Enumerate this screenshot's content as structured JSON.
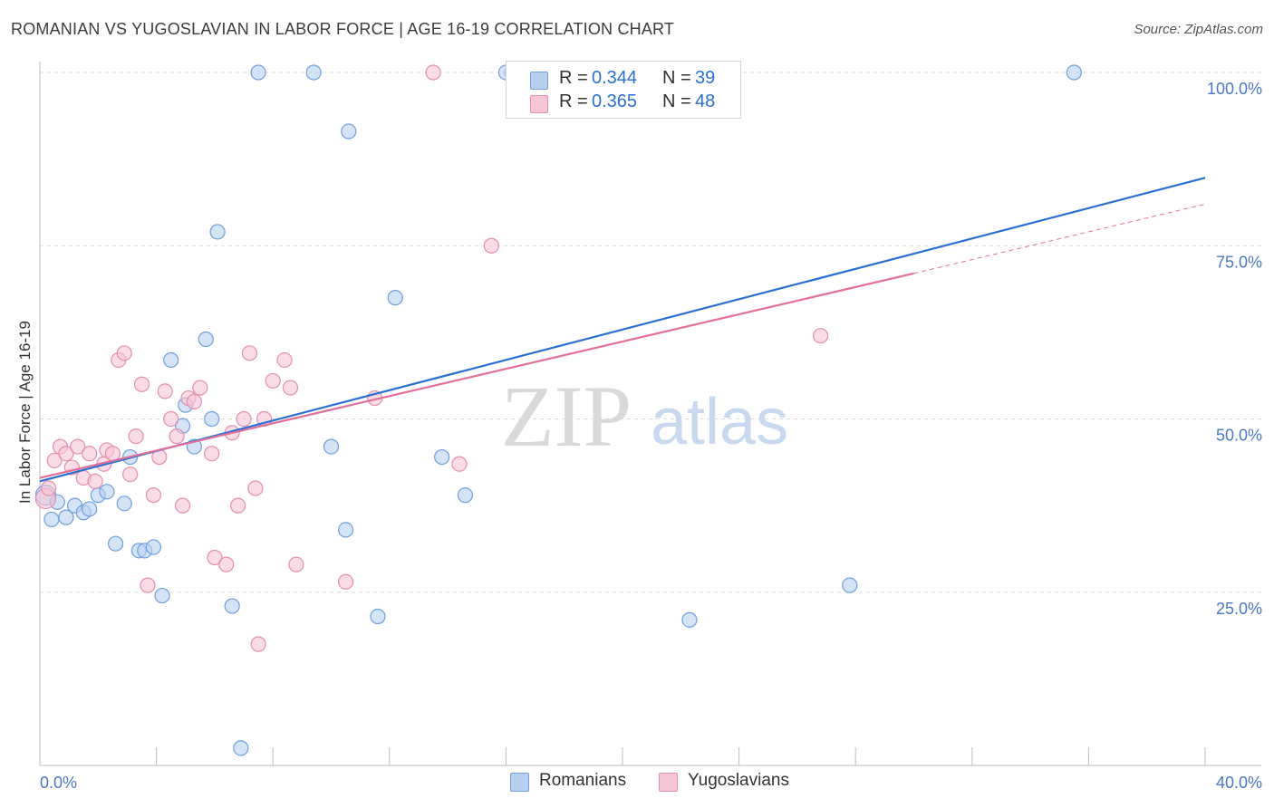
{
  "title": "ROMANIAN VS YUGOSLAVIAN IN LABOR FORCE | AGE 16-19 CORRELATION CHART",
  "source": "Source: ZipAtlas.com",
  "colors": {
    "blue": "#2a6fd1",
    "blue_fill": "#b8d0f0",
    "pink": "#e0709a",
    "pink_fill": "#f6c5d5",
    "axis_label": "#4a78c7",
    "grid": "#dcdcdc"
  },
  "watermark": {
    "zip": "ZIP",
    "atlas": "atlas"
  },
  "legend_top": {
    "rows": [
      {
        "r_label": "R = ",
        "r_value": "0.344",
        "n_label": "N = ",
        "n_value": "39"
      },
      {
        "r_label": "R = ",
        "r_value": "0.365",
        "n_label": "N = ",
        "n_value": "48"
      }
    ]
  },
  "legend_bottom": {
    "items": [
      "Romanians",
      "Yugoslavians"
    ]
  },
  "chart_data": {
    "type": "scatter",
    "title": "ROMANIAN VS YUGOSLAVIAN IN LABOR FORCE | AGE 16-19 CORRELATION CHART",
    "xlabel": "",
    "ylabel": "In Labor Force | Age 16-19",
    "xlim": [
      0,
      40
    ],
    "ylim": [
      0,
      100
    ],
    "x_tick_labels": [
      "0.0%",
      "40.0%"
    ],
    "y_ticks": [
      25,
      50,
      75,
      100
    ],
    "y_tick_labels": [
      "25.0%",
      "50.0%",
      "75.0%",
      "100.0%"
    ],
    "series": [
      {
        "name": "Romanians",
        "R": 0.344,
        "N": 39,
        "trend": {
          "x0": 0,
          "y0": 41.0,
          "x1": 40,
          "y1": 84.8
        },
        "points": [
          [
            0.2,
            39.0
          ],
          [
            0.4,
            35.5
          ],
          [
            0.6,
            38.0
          ],
          [
            0.9,
            35.8
          ],
          [
            1.2,
            37.5
          ],
          [
            1.5,
            36.5
          ],
          [
            1.7,
            37.0
          ],
          [
            2.0,
            39.0
          ],
          [
            2.3,
            39.5
          ],
          [
            2.6,
            32.0
          ],
          [
            2.9,
            37.8
          ],
          [
            3.1,
            44.5
          ],
          [
            3.4,
            31.0
          ],
          [
            3.6,
            31.0
          ],
          [
            3.9,
            31.5
          ],
          [
            4.2,
            24.5
          ],
          [
            4.5,
            58.5
          ],
          [
            4.9,
            49.0
          ],
          [
            5.0,
            52.0
          ],
          [
            5.3,
            46.0
          ],
          [
            5.7,
            61.5
          ],
          [
            5.9,
            50.0
          ],
          [
            6.1,
            77.0
          ],
          [
            6.6,
            23.0
          ],
          [
            6.9,
            2.5
          ],
          [
            7.5,
            100.0
          ],
          [
            9.4,
            100.0
          ],
          [
            10.0,
            46.0
          ],
          [
            10.5,
            34.0
          ],
          [
            10.6,
            91.5
          ],
          [
            11.6,
            21.5
          ],
          [
            12.2,
            67.5
          ],
          [
            13.8,
            44.5
          ],
          [
            14.6,
            39.0
          ],
          [
            16.2,
            100.0
          ],
          [
            22.3,
            21.0
          ],
          [
            27.8,
            26.0
          ],
          [
            35.5,
            100.0
          ],
          [
            16.0,
            100.0
          ]
        ]
      },
      {
        "name": "Yugoslavians",
        "R": 0.365,
        "N": 48,
        "trend": {
          "x0": 0,
          "y0": 41.5,
          "x1": 30.0,
          "y1": 71.0
        },
        "trend_dashed": {
          "x0": 30.0,
          "y0": 71.0,
          "x1": 40,
          "y1": 81.0
        },
        "points": [
          [
            0.2,
            38.5
          ],
          [
            0.3,
            40.0
          ],
          [
            0.5,
            44.0
          ],
          [
            0.7,
            46.0
          ],
          [
            0.9,
            45.0
          ],
          [
            1.1,
            43.0
          ],
          [
            1.3,
            46.0
          ],
          [
            1.5,
            41.5
          ],
          [
            1.7,
            45.0
          ],
          [
            1.9,
            41.0
          ],
          [
            2.2,
            43.5
          ],
          [
            2.3,
            45.5
          ],
          [
            2.5,
            45.0
          ],
          [
            2.7,
            58.5
          ],
          [
            2.9,
            59.5
          ],
          [
            3.1,
            42.0
          ],
          [
            3.3,
            47.5
          ],
          [
            3.5,
            55.0
          ],
          [
            3.7,
            26.0
          ],
          [
            3.9,
            39.0
          ],
          [
            4.1,
            44.5
          ],
          [
            4.3,
            54.0
          ],
          [
            4.5,
            50.0
          ],
          [
            4.7,
            47.5
          ],
          [
            4.9,
            37.5
          ],
          [
            5.1,
            53.0
          ],
          [
            5.3,
            52.5
          ],
          [
            5.5,
            54.5
          ],
          [
            5.9,
            45.0
          ],
          [
            6.0,
            30.0
          ],
          [
            6.4,
            29.0
          ],
          [
            6.6,
            48.0
          ],
          [
            6.8,
            37.5
          ],
          [
            7.0,
            50.0
          ],
          [
            7.2,
            59.5
          ],
          [
            7.4,
            40.0
          ],
          [
            7.5,
            17.5
          ],
          [
            7.7,
            50.0
          ],
          [
            8.0,
            55.5
          ],
          [
            8.4,
            58.5
          ],
          [
            8.6,
            54.5
          ],
          [
            8.8,
            29.0
          ],
          [
            10.5,
            26.5
          ],
          [
            11.5,
            53.0
          ],
          [
            13.5,
            100.0
          ],
          [
            14.4,
            43.5
          ],
          [
            15.5,
            75.0
          ],
          [
            26.8,
            62.0
          ]
        ]
      }
    ]
  }
}
